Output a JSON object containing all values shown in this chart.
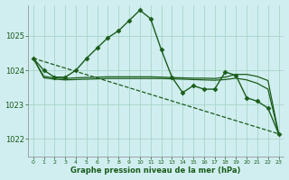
{
  "background_color": "#d0eef0",
  "grid_color": "#a8d4c8",
  "line_color": "#1a5c1a",
  "title": "Graphe pression niveau de la mer (hPa)",
  "xlim": [
    -0.5,
    23.5
  ],
  "ylim": [
    1021.5,
    1025.9
  ],
  "yticks": [
    1022,
    1023,
    1024,
    1025
  ],
  "xticks": [
    0,
    1,
    2,
    3,
    4,
    5,
    6,
    7,
    8,
    9,
    10,
    11,
    12,
    13,
    14,
    15,
    16,
    17,
    18,
    19,
    20,
    21,
    22,
    23
  ],
  "series": [
    {
      "x": [
        0,
        1,
        2,
        3,
        4,
        5,
        6,
        7,
        8,
        9,
        10,
        11,
        12,
        13,
        14,
        15,
        16,
        17,
        18,
        19,
        20,
        21,
        22,
        23
      ],
      "y": [
        1024.35,
        1024.0,
        1023.8,
        1023.8,
        1024.0,
        1024.35,
        1024.65,
        1024.95,
        1025.15,
        1025.45,
        1025.75,
        1025.5,
        1024.6,
        1023.8,
        1023.35,
        1023.55,
        1023.45,
        1023.45,
        1023.95,
        1023.85,
        1023.2,
        1023.1,
        1022.9,
        1022.15
      ],
      "marker": "D",
      "markersize": 2.5,
      "linestyle": "-",
      "linewidth": 1.0
    },
    {
      "x": [
        0,
        1,
        2,
        3,
        4,
        5,
        6,
        7,
        8,
        9,
        10,
        11,
        12,
        13,
        14,
        15,
        16,
        17,
        18,
        19,
        20,
        21,
        22,
        23
      ],
      "y": [
        1024.35,
        1023.82,
        1023.78,
        1023.76,
        1023.78,
        1023.79,
        1023.8,
        1023.81,
        1023.81,
        1023.81,
        1023.81,
        1023.81,
        1023.8,
        1023.79,
        1023.78,
        1023.77,
        1023.77,
        1023.76,
        1023.8,
        1023.88,
        1023.88,
        1023.82,
        1023.7,
        1022.15
      ],
      "marker": null,
      "linestyle": "-",
      "linewidth": 0.9
    },
    {
      "x": [
        0,
        1,
        2,
        3,
        4,
        5,
        6,
        7,
        8,
        9,
        10,
        11,
        12,
        13,
        14,
        15,
        16,
        17,
        18,
        19,
        20,
        21,
        22,
        23
      ],
      "y": [
        1024.35,
        1023.78,
        1023.74,
        1023.72,
        1023.73,
        1023.74,
        1023.75,
        1023.76,
        1023.76,
        1023.76,
        1023.76,
        1023.76,
        1023.76,
        1023.75,
        1023.74,
        1023.73,
        1023.72,
        1023.71,
        1023.73,
        1023.77,
        1023.72,
        1023.62,
        1023.45,
        1022.15
      ],
      "marker": null,
      "linestyle": "-",
      "linewidth": 0.9
    },
    {
      "x": [
        0,
        23
      ],
      "y": [
        1024.35,
        1022.15
      ],
      "marker": null,
      "linestyle": "--",
      "linewidth": 0.9
    }
  ]
}
